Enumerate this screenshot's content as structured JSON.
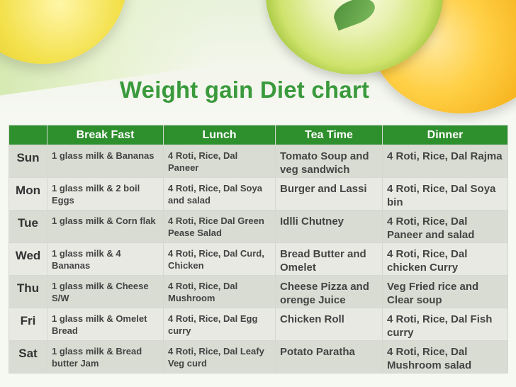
{
  "title": "Weight gain Diet chart",
  "columns": [
    "",
    "Break Fast",
    "Lunch",
    "Tea Time",
    "Dinner"
  ],
  "rows": [
    {
      "day": "Sun",
      "breakfast": "1 glass milk & Bananas",
      "lunch": "4 Roti, Rice, Dal Paneer",
      "tea": "Tomato Soup and veg sandwich",
      "dinner": "4 Roti, Rice, Dal Rajma"
    },
    {
      "day": "Mon",
      "breakfast": "1 glass milk & 2 boil Eggs",
      "lunch": "4 Roti, Rice, Dal Soya and salad",
      "tea": "Burger and Lassi",
      "dinner": "4 Roti, Rice, Dal Soya bin"
    },
    {
      "day": "Tue",
      "breakfast": "1 glass milk & Corn flak",
      "lunch": "4 Roti, Rice Dal Green Pease Salad",
      "tea": "Idlli Chutney",
      "dinner": "4 Roti, Rice, Dal Paneer and salad"
    },
    {
      "day": "Wed",
      "breakfast": "1 glass milk & 4 Bananas",
      "lunch": "4 Roti, Rice, Dal Curd, Chicken",
      "tea": "Bread Butter and Omelet",
      "dinner": "4 Roti, Rice, Dal chicken Curry"
    },
    {
      "day": "Thu",
      "breakfast": "1 glass milk & Cheese S/W",
      "lunch": "4 Roti, Rice, Dal Mushroom",
      "tea": "Cheese Pizza and orenge Juice",
      "dinner": "Veg Fried rice and Clear soup"
    },
    {
      "day": "Fri",
      "breakfast": "1 glass milk & Omelet Bread",
      "lunch": "4 Roti, Rice, Dal Egg curry",
      "tea": "Chicken Roll",
      "dinner": "4 Roti, Rice, Dal Fish curry"
    },
    {
      "day": "Sat",
      "breakfast": "1 glass milk & Bread butter Jam",
      "lunch": "4 Roti, Rice, Dal Leafy Veg curd",
      "tea": "Potato Paratha",
      "dinner": "4 Roti, Rice, Dal Mushroom salad"
    }
  ],
  "colors": {
    "header_bg": "#2e8f2d",
    "title": "#3a9a3c"
  }
}
